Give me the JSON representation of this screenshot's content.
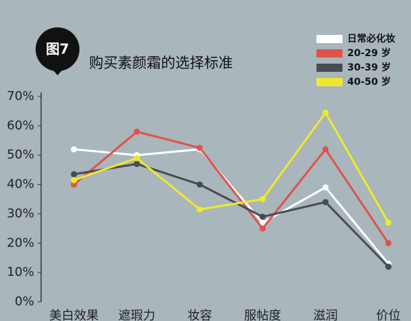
{
  "chart_data": {
    "type": "line",
    "badge": "图7",
    "title": "购买素颜霜的选择标准",
    "categories": [
      "美白效果",
      "遮瑕力",
      "妆容",
      "服帖度",
      "滋润",
      "价位"
    ],
    "series": [
      {
        "name": "日常必化妆",
        "color": "#ffffff",
        "values": [
          52,
          50,
          52,
          27,
          39,
          13
        ]
      },
      {
        "name": "20-29 岁",
        "color": "#e0524a",
        "values": [
          40,
          58,
          52.5,
          25,
          52,
          20
        ]
      },
      {
        "name": "30-39 岁",
        "color": "#474c50",
        "values": [
          43.5,
          47,
          40,
          29,
          34,
          12
        ]
      },
      {
        "name": "40-50 岁",
        "color": "#f0e92a",
        "values": [
          41.5,
          49,
          31.5,
          35,
          64.5,
          27
        ]
      }
    ],
    "ylim": [
      0,
      70
    ],
    "yticks": [
      {
        "value": 0,
        "label": "0%"
      },
      {
        "value": 10,
        "label": "10%"
      },
      {
        "value": 20,
        "label": "20%"
      },
      {
        "value": 30,
        "label": "30%"
      },
      {
        "value": 40,
        "label": "40%"
      },
      {
        "value": 50,
        "label": "50%"
      },
      {
        "value": 60,
        "label": "60%"
      },
      {
        "value": 70,
        "label": "70%"
      }
    ]
  }
}
